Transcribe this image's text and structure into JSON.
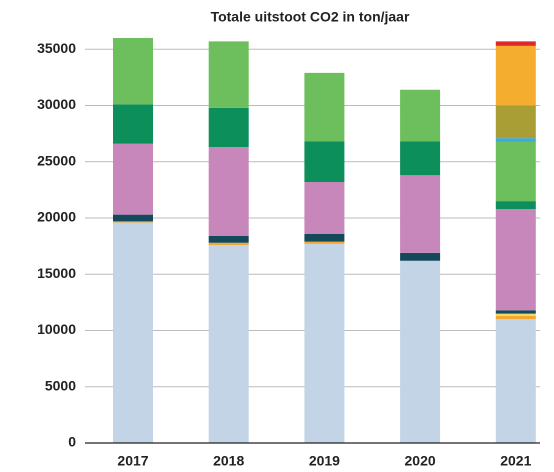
{
  "chart_data": {
    "type": "stacked_bar",
    "title": "Totale uitstoot CO2 in ton/jaar",
    "categories": [
      "2017",
      "2018",
      "2019",
      "2020",
      "2021"
    ],
    "series": [
      {
        "color": "#c3d4e7",
        "values": [
          19600,
          17600,
          17700,
          16200,
          11000
        ]
      },
      {
        "color": "#f0a830",
        "values": [
          100,
          200,
          200,
          0,
          300
        ]
      },
      {
        "color": "#f3d56a",
        "values": [
          0,
          0,
          0,
          0,
          200
        ]
      },
      {
        "color": "#13495b",
        "values": [
          600,
          600,
          700,
          700,
          300
        ]
      },
      {
        "color": "#c787ba",
        "values": [
          6300,
          7900,
          4600,
          6900,
          9000
        ]
      },
      {
        "color": "#0c8f5a",
        "values": [
          3500,
          3500,
          3600,
          3000,
          700
        ]
      },
      {
        "color": "#6cbf5c",
        "values": [
          5900,
          5900,
          6100,
          4600,
          5300
        ]
      },
      {
        "color": "#3fa9d8",
        "values": [
          0,
          0,
          0,
          0,
          300
        ]
      },
      {
        "color": "#a99d36",
        "values": [
          0,
          0,
          0,
          0,
          2900
        ]
      },
      {
        "color": "#f5ad30",
        "values": [
          0,
          0,
          0,
          0,
          5300
        ]
      },
      {
        "color": "#e0282a",
        "values": [
          0,
          0,
          0,
          0,
          400
        ]
      }
    ],
    "ylim": [
      0,
      36000
    ],
    "yticks": [
      0,
      5000,
      10000,
      15000,
      20000,
      25000,
      30000,
      35000
    ],
    "grid": true
  }
}
